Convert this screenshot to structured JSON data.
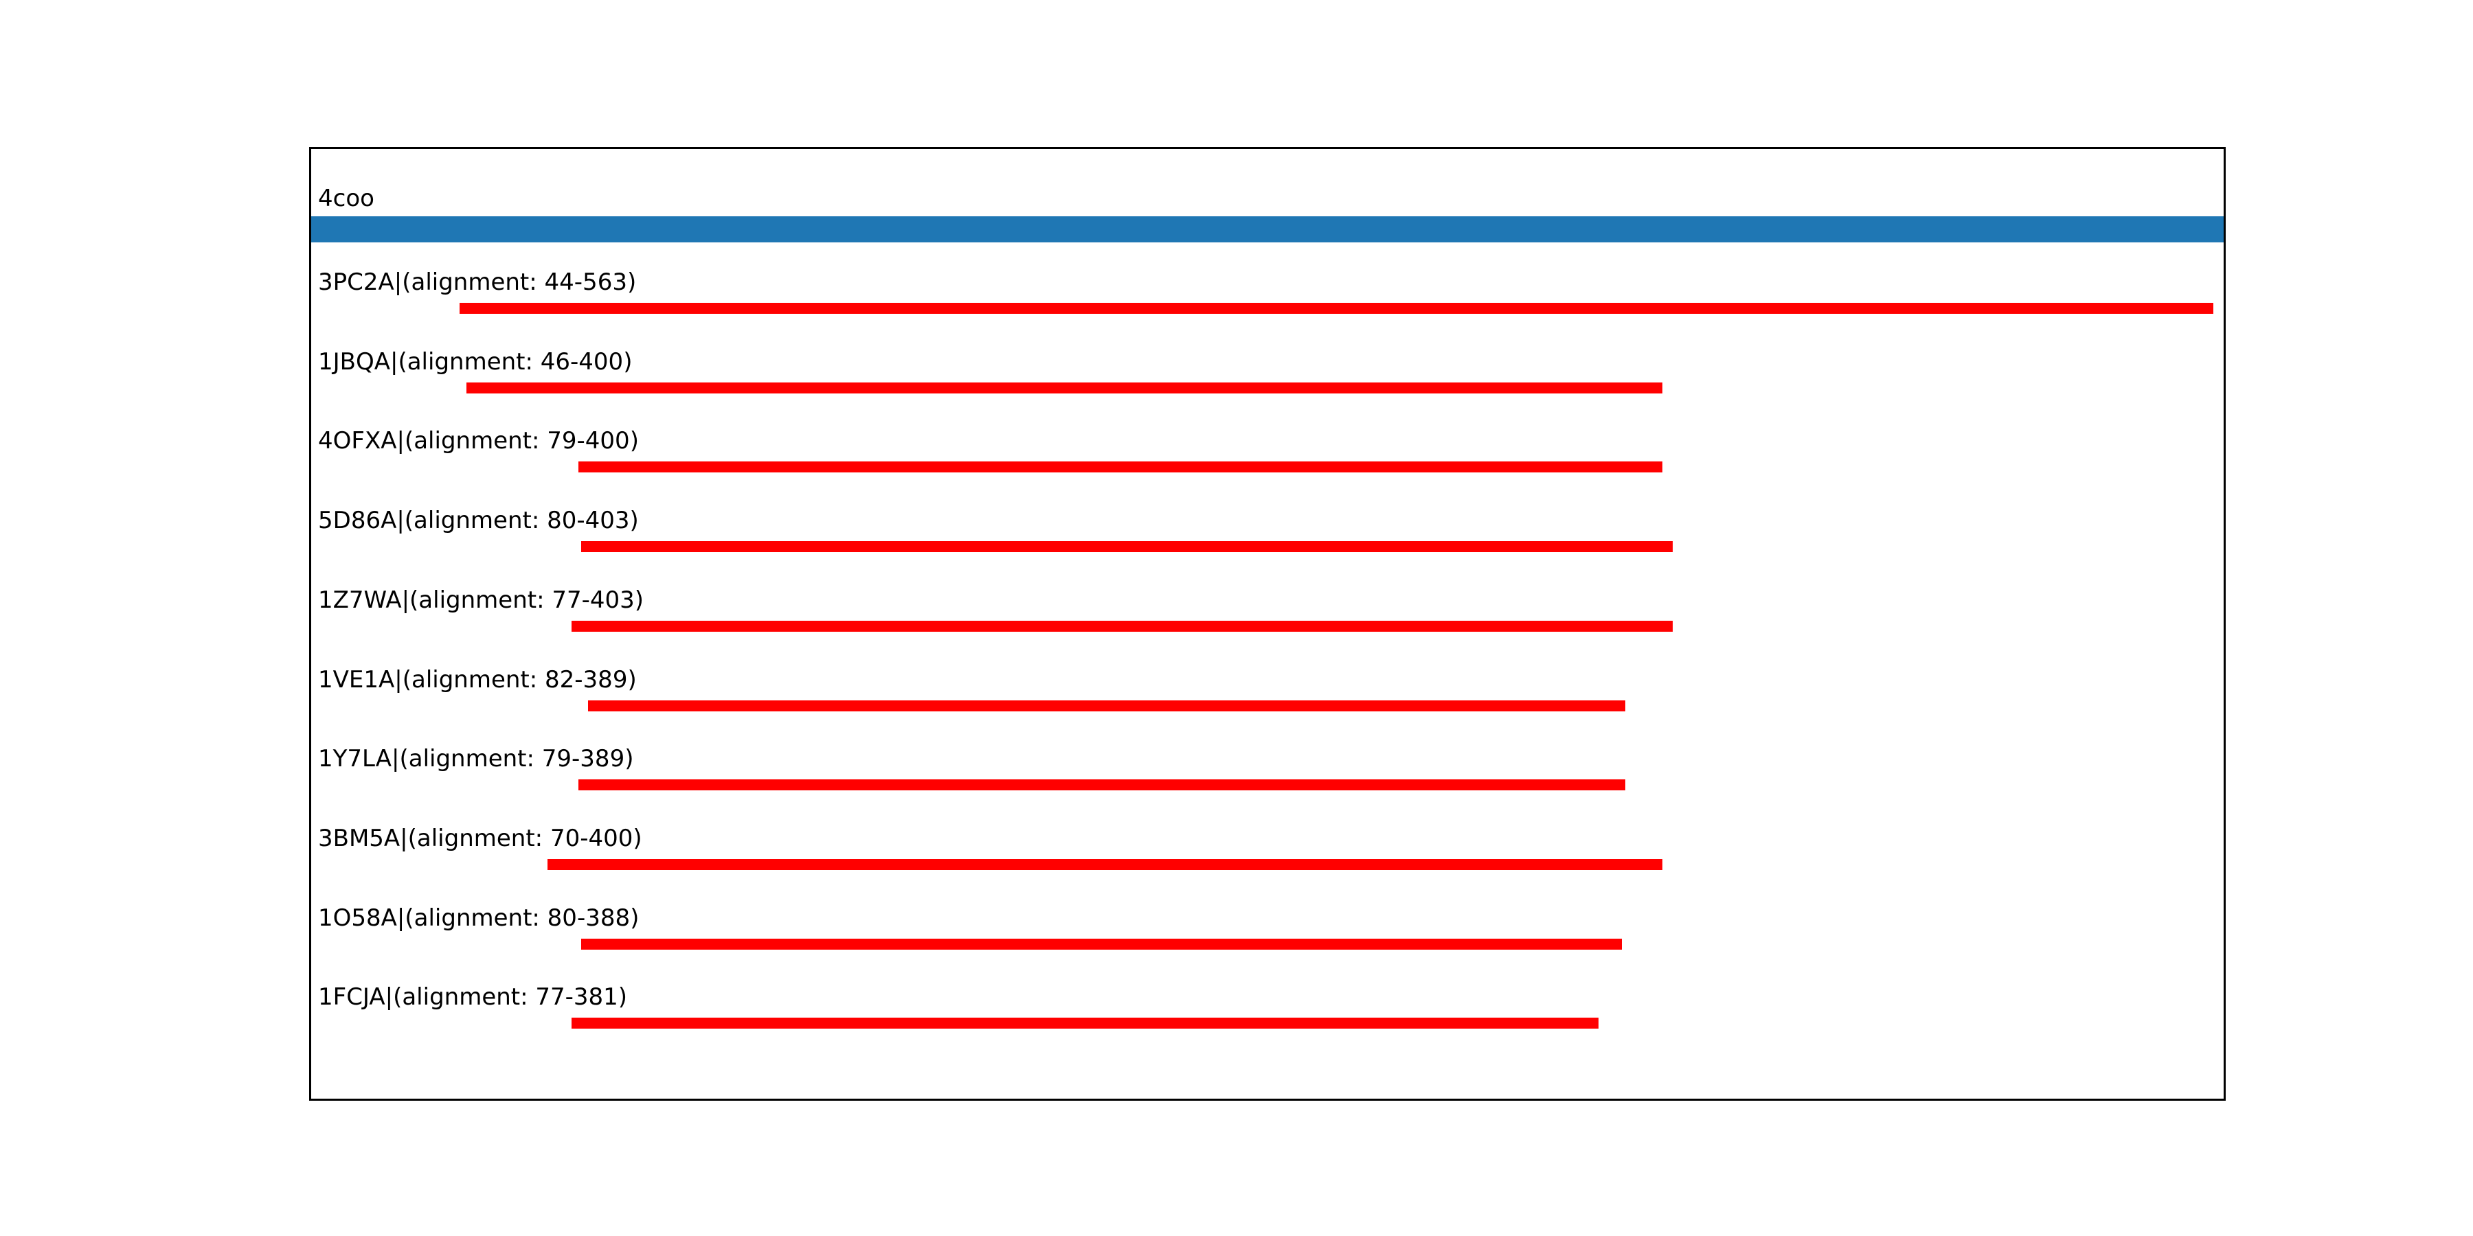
{
  "figure": {
    "background": "#ffffff",
    "border_color": "#000000",
    "text_color": "#000000"
  },
  "chart_data": {
    "type": "bar",
    "subtype": "alignment-coverage",
    "orientation": "horizontal",
    "title": "4coo",
    "xlim": [
      0,
      566
    ],
    "grid": false,
    "legend": "none",
    "query": {
      "id": "4coo",
      "start": 0,
      "end": 566,
      "color": "#1f77b4"
    },
    "hit_color": "#ff0000",
    "hits": [
      {
        "id": "3PC2A",
        "label": "3PC2A|(alignment: 44-563)",
        "start": 44,
        "end": 563
      },
      {
        "id": "1JBQA",
        "label": "1JBQA|(alignment: 46-400)",
        "start": 46,
        "end": 400
      },
      {
        "id": "4OFXA",
        "label": "4OFXA|(alignment: 79-400)",
        "start": 79,
        "end": 400
      },
      {
        "id": "5D86A",
        "label": "5D86A|(alignment: 80-403)",
        "start": 80,
        "end": 403
      },
      {
        "id": "1Z7WA",
        "label": "1Z7WA|(alignment: 77-403)",
        "start": 77,
        "end": 403
      },
      {
        "id": "1VE1A",
        "label": "1VE1A|(alignment: 82-389)",
        "start": 82,
        "end": 389
      },
      {
        "id": "1Y7LA",
        "label": "1Y7LA|(alignment: 79-389)",
        "start": 79,
        "end": 389
      },
      {
        "id": "3BM5A",
        "label": "3BM5A|(alignment: 70-400)",
        "start": 70,
        "end": 400
      },
      {
        "id": "1O58A",
        "label": "1O58A|(alignment: 80-388)",
        "start": 80,
        "end": 388
      },
      {
        "id": "1FCJA",
        "label": "1FCJA|(alignment: 77-381)",
        "start": 77,
        "end": 381
      }
    ]
  }
}
